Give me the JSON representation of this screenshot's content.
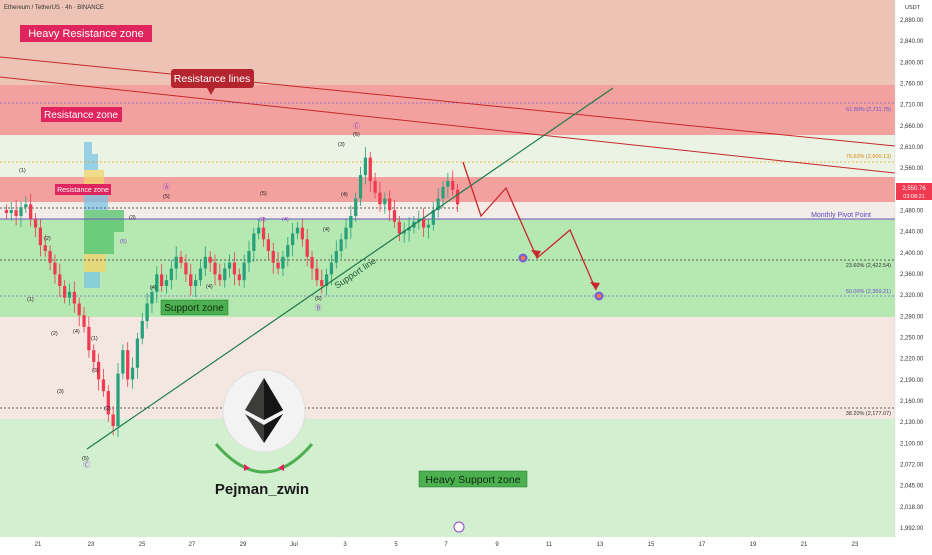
{
  "header": {
    "symbol_line": "Ethereum / TetherUS · 4h · BINANCE",
    "currency": "USDT"
  },
  "y_axis": {
    "ticks": [
      "2,880.00",
      "2,840.00",
      "2,800.00",
      "2,760.00",
      "2,710.00",
      "2,660.00",
      "2,610.00",
      "2,560.00",
      "2,520.00",
      "2,480.00",
      "2,440.00",
      "2,400.00",
      "2,360.00",
      "2,320.00",
      "2,280.00",
      "2,250.00",
      "2,220.00",
      "2,190.00",
      "2,160.00",
      "2,130.00",
      "2,100.00",
      "2,072.00",
      "2,045.00",
      "2,018.00",
      "1,992.00"
    ],
    "price_label": "2,550.76",
    "countdown": "03:08:21"
  },
  "x_axis": {
    "ticks": [
      "21",
      "23",
      "25",
      "27",
      "29",
      "Jul",
      "3",
      "5",
      "7",
      "9",
      "11",
      "13",
      "15",
      "17",
      "19",
      "21",
      "23"
    ]
  },
  "zones": {
    "heavy_resistance": "Heavy Resistance zone",
    "resistance": "Resistance zone",
    "resistance_small": "Resistance zone",
    "support": "Support zone",
    "heavy_support": "Heavy Support zone"
  },
  "callouts": {
    "resistance_lines": "Resistance lines",
    "support_line": "Support line",
    "monthly_pivot": "Monthly Pivot Point"
  },
  "fib_levels": {
    "f618": "61.80% (2,711.75)",
    "f786": "78.60% (2,600.13)",
    "f236": "23.60% (2,422.54)",
    "f500": "50.00% (2,359.21)",
    "f382": "38.20% (2,177.07)"
  },
  "wave_labels": [
    "(1)",
    "(2)",
    "(3)",
    "(4)",
    "(5)",
    "(1)",
    "(2)",
    "(3)",
    "(4)",
    "(5)",
    "(3)",
    "(4)",
    "(5)",
    "(4)",
    "(5)",
    "(1)",
    "(2)",
    "(3)",
    "(4)",
    "(5)",
    "(3)",
    "(4)",
    "(5)"
  ],
  "circle_labels": [
    "Ⓐ",
    "Ⓑ",
    "Ⓒ",
    "Ⓒ"
  ],
  "brand": {
    "name": "Pejman_zwin"
  },
  "colors": {
    "resistance_fill": "#f3a19f",
    "heavy_resistance_fill": "#edc3b5",
    "support_fill": "#b6e8b2",
    "heavy_support_fill": "#d2efcf",
    "bull_candle": "#26a17b",
    "bear_candle": "#ef3a50",
    "support_line": "#1f7a4c",
    "resistance_line": "#c8282d",
    "projection_arrow": "#c8282d",
    "label_red": "#e0245e",
    "label_green": "#4caf50"
  },
  "chart_data": {
    "type": "candlestick",
    "title": "Ethereum / TetherUS · 4h · BINANCE",
    "y_unit": "USDT",
    "ylim": [
      1980,
      2900
    ],
    "x_start": "Jun 20",
    "series": [
      {
        "name": "ETHUSDT",
        "close": [
          2535,
          2540,
          2530,
          2545,
          2550,
          2525,
          2510,
          2480,
          2470,
          2450,
          2430,
          2410,
          2390,
          2400,
          2380,
          2360,
          2340,
          2300,
          2280,
          2250,
          2230,
          2190,
          2170,
          2260,
          2300,
          2250,
          2270,
          2320,
          2350,
          2380,
          2400,
          2430,
          2410,
          2420,
          2440,
          2460,
          2450,
          2430,
          2410,
          2420,
          2440,
          2460,
          2450,
          2430,
          2420,
          2440,
          2450,
          2430,
          2420,
          2450,
          2470,
          2500,
          2510,
          2490,
          2470,
          2450,
          2440,
          2460,
          2480,
          2500,
          2510,
          2490,
          2460,
          2440,
          2420,
          2410,
          2430,
          2450,
          2470,
          2490,
          2510,
          2530,
          2560,
          2600,
          2630,
          2590,
          2570,
          2550,
          2560,
          2540,
          2520,
          2500,
          2505,
          2510,
          2520,
          2525,
          2510,
          2515,
          2540,
          2560,
          2580,
          2590,
          2575,
          2550
        ]
      },
      {
        "name": "Projection",
        "points": [
          [
            2576,
            2600
          ],
          [
            2522,
            2450
          ],
          [
            2440,
            2520
          ],
          [
            2430,
            2385
          ],
          [
            2470,
            2365
          ],
          [
            2360,
            2355
          ]
        ]
      }
    ],
    "levels": [
      {
        "name": "61.80%",
        "value": 2711.75
      },
      {
        "name": "78.60%",
        "value": 2600.13
      },
      {
        "name": "Monthly Pivot Point",
        "value": 2494
      },
      {
        "name": "23.60%",
        "value": 2422.54
      },
      {
        "name": "50.00%",
        "value": 2359.21
      },
      {
        "name": "38.20%",
        "value": 2177.07
      }
    ],
    "zones": [
      {
        "name": "Heavy Resistance zone",
        "from": 2760,
        "to": 2900
      },
      {
        "name": "Resistance zone",
        "from": 2650,
        "to": 2760
      },
      {
        "name": "Resistance zone",
        "from": 2530,
        "to": 2570
      },
      {
        "name": "Support zone",
        "from": 2320,
        "to": 2490
      },
      {
        "name": "Heavy Support zone",
        "from": 1980,
        "to": 2160
      }
    ],
    "grid": true
  }
}
